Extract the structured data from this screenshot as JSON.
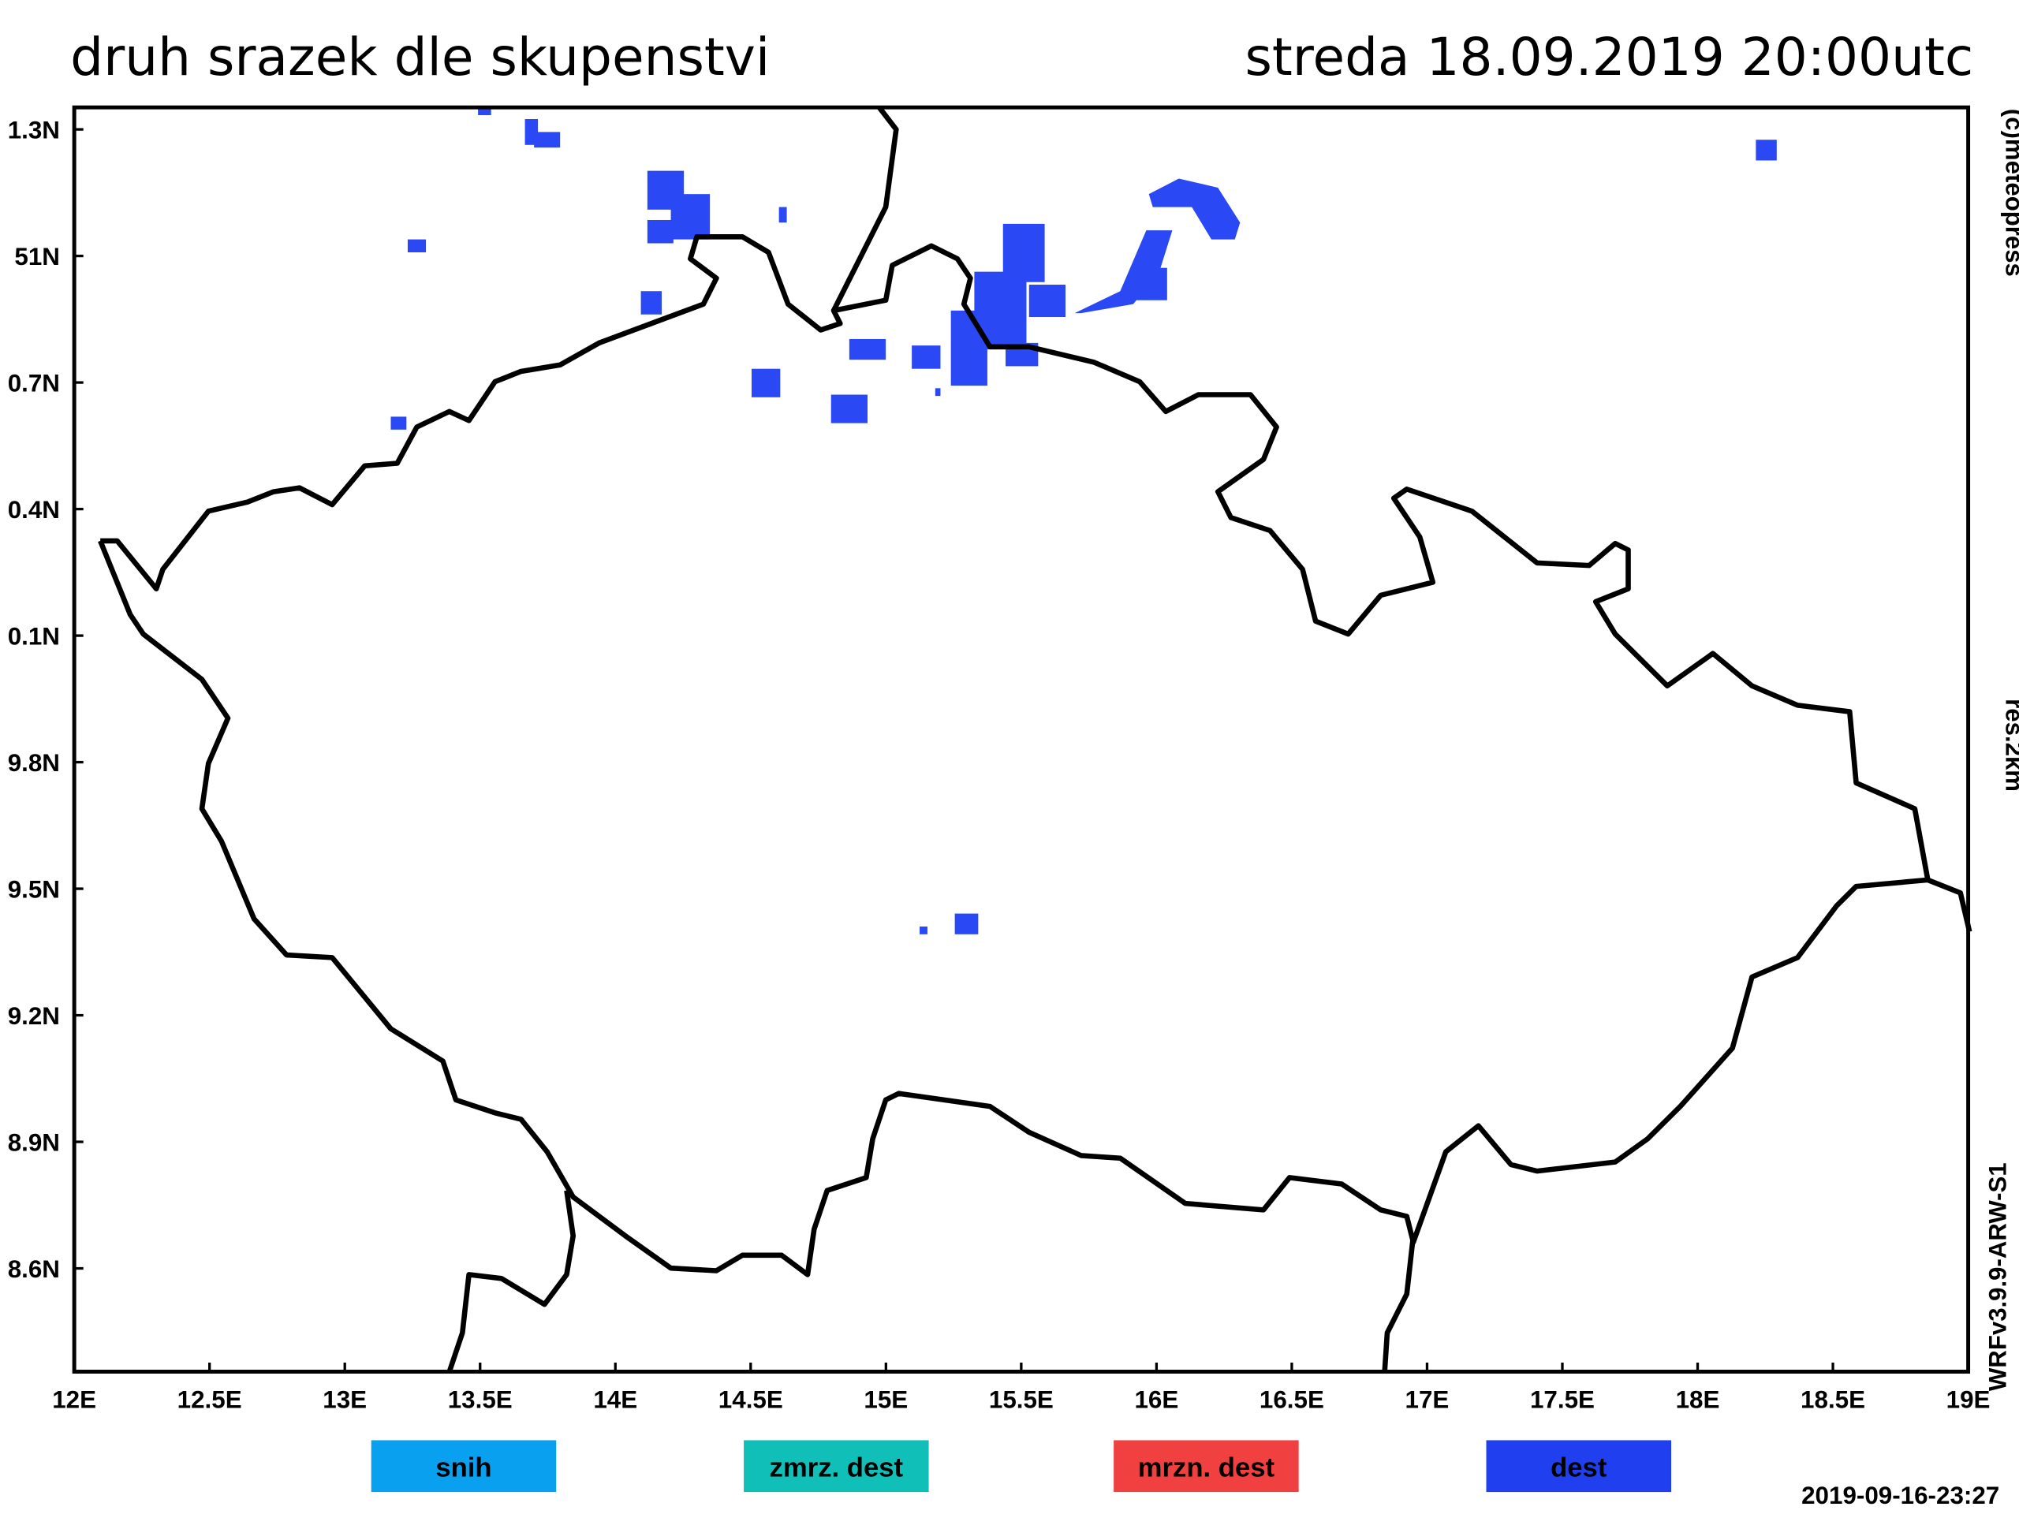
{
  "header": {
    "title": "druh srazek dle skupenstvi",
    "valid_time": "streda 18.09.2019 20:00utc"
  },
  "map": {
    "lat_labels": [
      "1.3N",
      "51N",
      "0.7N",
      "0.4N",
      "0.1N",
      "9.8N",
      "9.5N",
      "9.2N",
      "8.9N",
      "8.6N"
    ],
    "lon_labels": [
      "12E",
      "12.5E",
      "13E",
      "13.5E",
      "14E",
      "14.5E",
      "15E",
      "15.5E",
      "16E",
      "16.5E",
      "17E",
      "17.5E",
      "18E",
      "18.5E",
      "19E"
    ]
  },
  "side_labels": {
    "copyright": "(c)meteopress",
    "resolution": "res.2km",
    "model": "WRFv3.9.9-ARW-S1"
  },
  "legend": [
    "snih",
    "zmrz. dest",
    "mrzn. dest",
    "dest"
  ],
  "footer": {
    "run_time": "2019-09-16-23:27"
  }
}
